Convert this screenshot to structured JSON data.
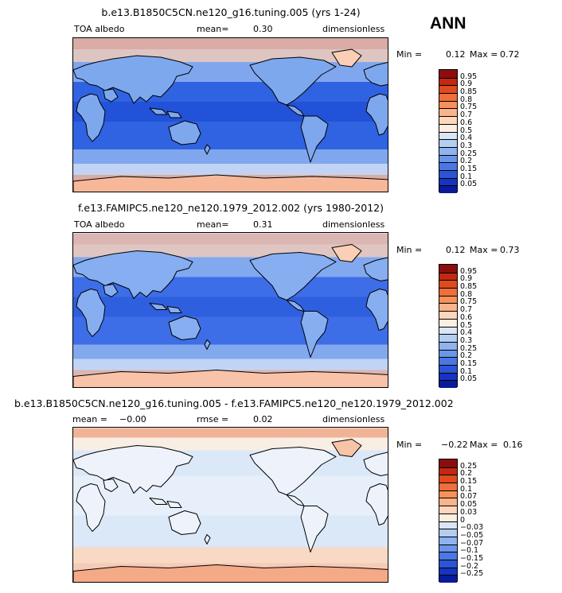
{
  "season": "ANN",
  "panels": [
    {
      "title": "b.e13.B1850C5CN.ne120_g16.tuning.005 (yrs 1-24)",
      "left_label": "TOA albedo",
      "mid_label": "mean=",
      "mid_value": "0.30",
      "right_label": "dimensionless",
      "min_label": "Min =",
      "min_value": "0.12",
      "max_label": "Max =",
      "max_value": "0.72",
      "colorbar": {
        "labels": [
          "0.95",
          "0.9",
          "0.85",
          "0.8",
          "0.75",
          "0.7",
          "0.6",
          "0.5",
          "0.4",
          "0.3",
          "0.25",
          "0.2",
          "0.15",
          "0.1",
          "0.05"
        ],
        "colors": [
          "#8c0d0d",
          "#c12a10",
          "#de4b1c",
          "#ee6f3a",
          "#f6915a",
          "#fbb48a",
          "#fdd6bb",
          "#fdeee0",
          "#d9e6f7",
          "#b4cdf2",
          "#8eb3ee",
          "#6a96ea",
          "#4a77e4",
          "#2c55d6",
          "#1534c2",
          "#0a1a9a"
        ],
        "ocean_color": "#2f63e0",
        "land_color": "#7ea8ee",
        "polar_color": "#f7b89a"
      }
    },
    {
      "title": "f.e13.FAMIPC5.ne120_ne120.1979_2012.002 (yrs 1980-2012)",
      "left_label": "TOA albedo",
      "mid_label": "mean=",
      "mid_value": "0.31",
      "right_label": "dimensionless",
      "min_label": "Min =",
      "min_value": "0.12",
      "max_label": "Max =",
      "max_value": "0.73",
      "colorbar": {
        "labels": [
          "0.95",
          "0.9",
          "0.85",
          "0.8",
          "0.75",
          "0.7",
          "0.6",
          "0.5",
          "0.4",
          "0.3",
          "0.25",
          "0.2",
          "0.15",
          "0.1",
          "0.05"
        ],
        "colors": [
          "#8c0d0d",
          "#c12a10",
          "#de4b1c",
          "#ee6f3a",
          "#f6915a",
          "#fbb48a",
          "#fdd6bb",
          "#fdeee0",
          "#d9e6f7",
          "#b4cdf2",
          "#8eb3ee",
          "#6a96ea",
          "#4a77e4",
          "#2c55d6",
          "#1534c2",
          "#0a1a9a"
        ],
        "ocean_color": "#3d6fe6",
        "land_color": "#86aef0",
        "polar_color": "#f8c3a8"
      }
    },
    {
      "title": "b.e13.B1850C5CN.ne120_g16.tuning.005 - f.e13.FAMIPC5.ne120_ne120.1979_2012.002",
      "left_label": "mean =",
      "left_value": "−0.00",
      "mid_label": "rmse =",
      "mid_value": "0.02",
      "right_label": "dimensionless",
      "min_label": "Min =",
      "min_value": "−0.22",
      "max_label": "Max =",
      "max_value": "0.16",
      "colorbar": {
        "labels": [
          "0.25",
          "0.2",
          "0.15",
          "0.1",
          "0.07",
          "0.05",
          "0.03",
          "0",
          "−0.03",
          "−0.05",
          "−0.07",
          "−0.1",
          "−0.15",
          "−0.2",
          "−0.25"
        ],
        "colors": [
          "#8c0d0d",
          "#c12a10",
          "#de4b1c",
          "#ee6f3a",
          "#f6915a",
          "#fbb48a",
          "#fdd6bb",
          "#fdeee0",
          "#d9e6f7",
          "#b4cdf2",
          "#8eb3ee",
          "#6a96ea",
          "#4a77e4",
          "#2c55d6",
          "#1534c2",
          "#0a1a9a"
        ],
        "ocean_color": "#dbe7f8",
        "land_color": "#eef3fb",
        "polar_color": "#f4a987"
      }
    }
  ]
}
